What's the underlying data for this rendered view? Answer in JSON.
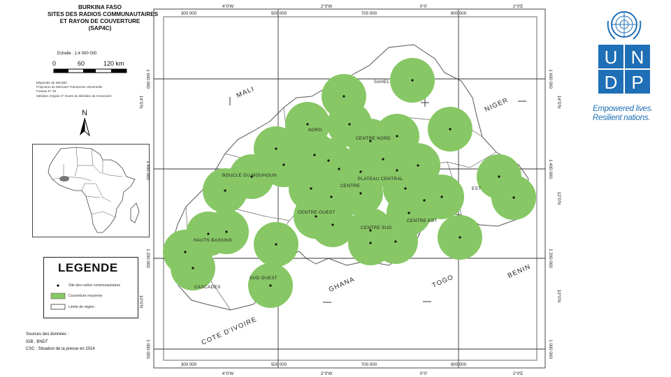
{
  "title": {
    "line1": "BURKINA FASO",
    "line2": "SITES DES RADIOS COMMUNAUTAIRES",
    "line3": "ET RAYON DE COUVERTURE",
    "line4": "(SAP4C)"
  },
  "scale": {
    "label": "Echelle : 1:4 000 000",
    "ticks": [
      "0",
      "60",
      "120 km"
    ]
  },
  "projection_notes": [
    "Ellipsoïde de WGS84",
    "Projection de Mercator Transverse Universelle",
    "Fuseau N° 30",
    "Méridien Origine 3° Ouest du Méridien de Greenwich"
  ],
  "north_label": "N",
  "grid": {
    "top_x_labels": [
      "300 000",
      "4°0'W",
      "500 000",
      "2°0'W",
      "700 000",
      "0°0'",
      "900 000",
      "2°0'E"
    ],
    "bottom_x_labels": [
      "300 000",
      "4°0'W",
      "500 000",
      "2°0'W",
      "700 000",
      "0°0'",
      "900 000",
      "2°0'E"
    ],
    "left_y_labels": [
      "1 600 000",
      "14°0'N",
      "1 400 000",
      "1 200 000",
      "10°0'N",
      "1 000 000"
    ],
    "right_y_labels": [
      "1 600 000",
      "14°0'N",
      "1 400 000",
      "12°0'N",
      "1 200 000",
      "10°0'N",
      "1 000 000"
    ]
  },
  "countries": [
    {
      "name": "MALI"
    },
    {
      "name": "NIGER"
    },
    {
      "name": "BENIN"
    },
    {
      "name": "TOGO"
    },
    {
      "name": "GHANA"
    },
    {
      "name": "COTE D'IVOIRE"
    }
  ],
  "regions": [
    "SAHEL",
    "NORD",
    "CENTRE NORD",
    "BOUCLE DU MOUHOUN",
    "PLATEAU CENTRAL",
    "CENTRE",
    "EST",
    "CENTRE OUEST",
    "CENTRE EST",
    "CENTRE SUD",
    "HAUTS BASSINS",
    "SUD OUEST",
    "CASCADES"
  ],
  "legend": {
    "title": "LEGENDE",
    "items": [
      {
        "label": "Site des radios communautaires"
      },
      {
        "label": "Couverture moyenne"
      },
      {
        "label": "Limite de région"
      }
    ],
    "coverage_color": "#87c765"
  },
  "sources": {
    "heading": "Sources des données :",
    "lines": [
      "IGB : BNDT",
      "CSC : Situation de la presse en 2014"
    ]
  },
  "undp": {
    "letters": [
      "U",
      "N",
      "D",
      "P"
    ],
    "tagline_line1": "Empowered lives.",
    "tagline_line2": "Resilient nations.",
    "brand_color": "#1f6fb6"
  }
}
